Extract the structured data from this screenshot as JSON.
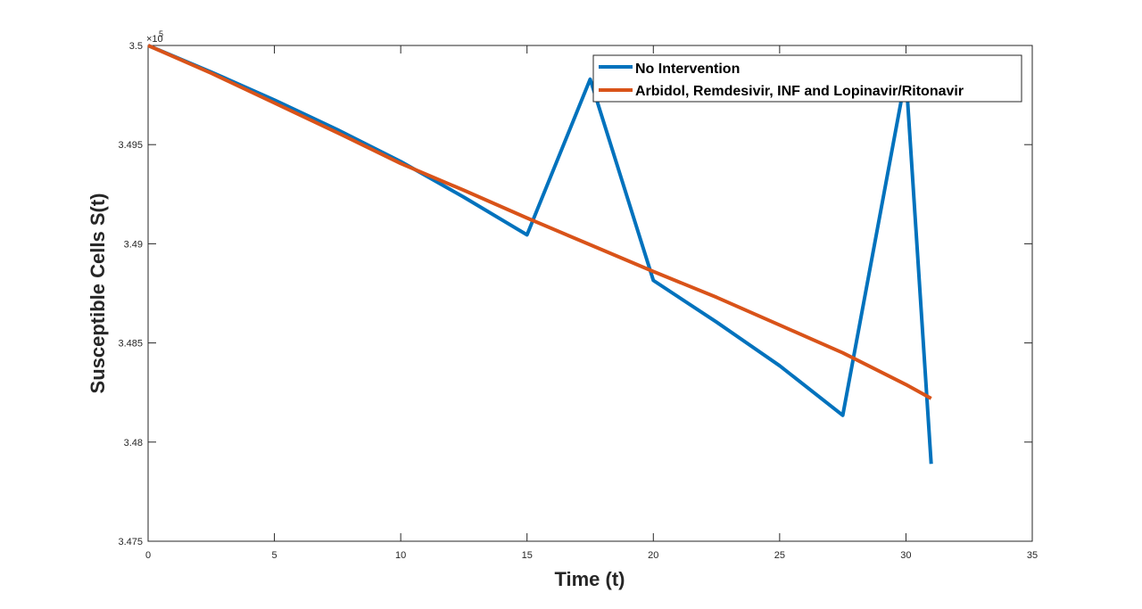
{
  "chart_data": {
    "type": "line",
    "xlabel": "Time (t)",
    "ylabel": "Susceptible Cells S(t)",
    "xlim": [
      0,
      35
    ],
    "ylim": [
      3.475,
      3.5
    ],
    "y_exponent_label": "×10",
    "y_exponent_power": "5",
    "xticks": [
      "0",
      "5",
      "10",
      "15",
      "20",
      "25",
      "30",
      "35"
    ],
    "yticks": [
      "3.475",
      "3.48",
      "3.485",
      "3.49",
      "3.495",
      "3.5"
    ],
    "grid": false,
    "legend_position": "top-right",
    "series": [
      {
        "name": "No Intervention",
        "color": "#0072BD",
        "x": [
          0,
          2.5,
          5,
          7.5,
          10,
          12.5,
          15,
          17.5,
          20,
          22.5,
          25,
          27.5,
          30,
          31
        ],
        "y": [
          3.5,
          3.49866,
          3.49725,
          3.49575,
          3.49415,
          3.49235,
          3.49045,
          3.4983,
          3.48815,
          3.48605,
          3.48385,
          3.48135,
          3.4985,
          3.4789
        ]
      },
      {
        "name": "Arbidol, Remdesivir, INF and Lopinavir/Ritonavir",
        "color": "#D95319",
        "x": [
          0,
          2.5,
          5,
          7.5,
          10,
          12.5,
          15,
          17.5,
          20,
          22.5,
          25,
          27.5,
          30,
          31
        ],
        "y": [
          3.5,
          3.4986,
          3.4971,
          3.4956,
          3.49405,
          3.4927,
          3.4913,
          3.48995,
          3.4886,
          3.4873,
          3.4859,
          3.4845,
          3.4829,
          3.4822
        ]
      }
    ]
  }
}
